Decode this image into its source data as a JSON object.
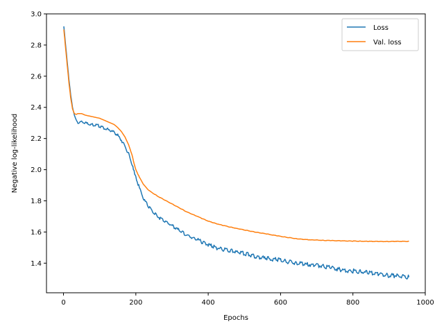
{
  "chart_data": {
    "type": "line",
    "xlabel": "Epochs",
    "ylabel": "Negative log-likelihood",
    "xlim": [
      -47,
      1000
    ],
    "ylim": [
      1.21,
      3.0
    ],
    "xticks": [
      0,
      200,
      400,
      600,
      800,
      1000
    ],
    "yticks": [
      1.4,
      1.6,
      1.8,
      2.0,
      2.2,
      2.4,
      2.6,
      2.8,
      3.0
    ],
    "xtick_labels": [
      "0",
      "200",
      "400",
      "600",
      "800",
      "1000"
    ],
    "ytick_labels": [
      "1.4",
      "1.6",
      "1.8",
      "2.0",
      "2.2",
      "2.4",
      "2.6",
      "2.8",
      "3.0"
    ],
    "legend": "top-right",
    "grid": false,
    "series": [
      {
        "name": "Loss",
        "color": "#1f77b4",
        "x": [
          1,
          5,
          10,
          15,
          20,
          25,
          30,
          35,
          40,
          50,
          60,
          80,
          100,
          120,
          140,
          150,
          160,
          170,
          180,
          190,
          195,
          200,
          210,
          220,
          230,
          240,
          250,
          260,
          280,
          300,
          320,
          340,
          360,
          380,
          400,
          420,
          440,
          460,
          480,
          500,
          520,
          540,
          560,
          580,
          600,
          620,
          640,
          660,
          680,
          700,
          720,
          740,
          760,
          780,
          800,
          820,
          840,
          860,
          880,
          900,
          920,
          940,
          955
        ],
        "y": [
          2.92,
          2.82,
          2.7,
          2.58,
          2.48,
          2.4,
          2.35,
          2.32,
          2.3,
          2.31,
          2.3,
          2.29,
          2.28,
          2.26,
          2.24,
          2.22,
          2.19,
          2.15,
          2.1,
          2.03,
          1.99,
          1.95,
          1.88,
          1.82,
          1.78,
          1.75,
          1.72,
          1.7,
          1.67,
          1.64,
          1.61,
          1.58,
          1.56,
          1.54,
          1.52,
          1.5,
          1.49,
          1.48,
          1.47,
          1.46,
          1.45,
          1.44,
          1.43,
          1.425,
          1.42,
          1.41,
          1.4,
          1.395,
          1.39,
          1.385,
          1.38,
          1.37,
          1.36,
          1.355,
          1.35,
          1.345,
          1.34,
          1.335,
          1.33,
          1.32,
          1.32,
          1.315,
          1.31
        ]
      },
      {
        "name": "Val. loss",
        "color": "#ff7f0e",
        "x": [
          1,
          5,
          10,
          15,
          20,
          25,
          30,
          35,
          40,
          50,
          60,
          80,
          100,
          120,
          140,
          150,
          160,
          170,
          180,
          190,
          195,
          200,
          210,
          220,
          230,
          240,
          250,
          260,
          280,
          300,
          320,
          340,
          360,
          380,
          400,
          420,
          440,
          460,
          480,
          500,
          520,
          540,
          560,
          580,
          600,
          620,
          640,
          660,
          680,
          700,
          720,
          740,
          760,
          780,
          800,
          820,
          840,
          860,
          880,
          900,
          920,
          940,
          955
        ],
        "y": [
          2.9,
          2.8,
          2.68,
          2.56,
          2.46,
          2.39,
          2.36,
          2.355,
          2.36,
          2.36,
          2.35,
          2.34,
          2.33,
          2.31,
          2.29,
          2.27,
          2.245,
          2.21,
          2.16,
          2.09,
          2.04,
          2.0,
          1.95,
          1.91,
          1.88,
          1.86,
          1.845,
          1.83,
          1.805,
          1.78,
          1.755,
          1.73,
          1.71,
          1.69,
          1.67,
          1.655,
          1.643,
          1.632,
          1.622,
          1.613,
          1.604,
          1.596,
          1.588,
          1.58,
          1.572,
          1.565,
          1.558,
          1.553,
          1.55,
          1.548,
          1.546,
          1.545,
          1.544,
          1.543,
          1.542,
          1.541,
          1.54,
          1.54,
          1.539,
          1.539,
          1.54,
          1.54,
          1.54
        ]
      }
    ]
  }
}
